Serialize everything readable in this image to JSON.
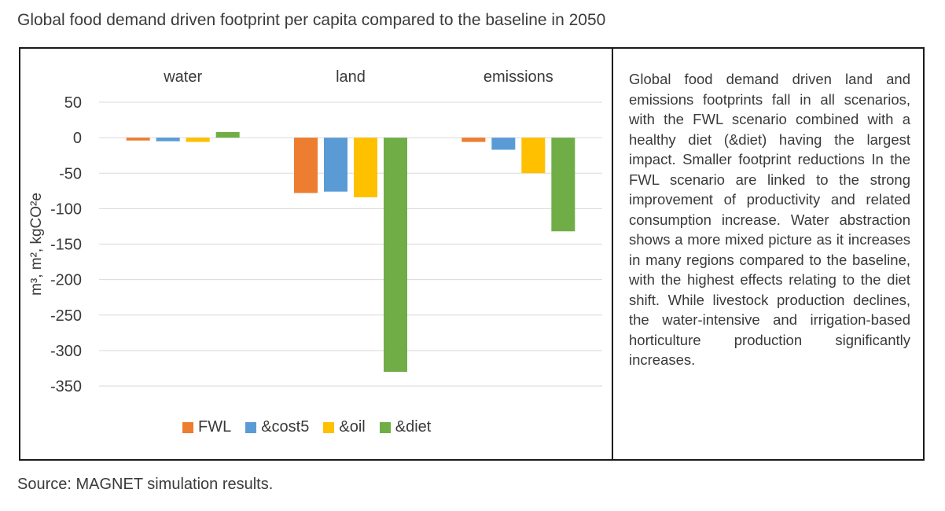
{
  "title": "Global food demand driven footprint per capita compared to the baseline in 2050",
  "source": "Source: MAGNET simulation results.",
  "description": "Global food demand driven land and emissions footprints fall in all scenarios, with the FWL scenario combined with a healthy diet (&diet) having the largest impact. Smaller footprint reductions In the FWL scenario are linked to the strong improvement of productivity and related consumption increase. Water abstraction shows a more mixed picture as it increases in many regions compared to the baseline, with the highest effects relating to the diet shift. While livestock production declines, the water-intensive and irrigation-based horticulture production significantly increases.",
  "chart_data": {
    "type": "bar",
    "title": "",
    "categories": [
      "water",
      "land",
      "emissions"
    ],
    "series": [
      {
        "name": "FWL",
        "color": "#ED7D31",
        "values": [
          -4,
          -78,
          -6
        ]
      },
      {
        "name": "&cost5",
        "color": "#5B9BD5",
        "values": [
          -5,
          -76,
          -17
        ]
      },
      {
        "name": "&oil",
        "color": "#FFC000",
        "values": [
          -6,
          -84,
          -50
        ]
      },
      {
        "name": "&diet",
        "color": "#70AD47",
        "values": [
          8,
          -330,
          -132
        ]
      }
    ],
    "ylabel": "m³, m², kgCO²e",
    "ylim": [
      -350,
      50
    ],
    "yticks": [
      50,
      0,
      -50,
      -100,
      -150,
      -200,
      -250,
      -300,
      -350
    ],
    "grid": true,
    "legend": "bottom"
  }
}
